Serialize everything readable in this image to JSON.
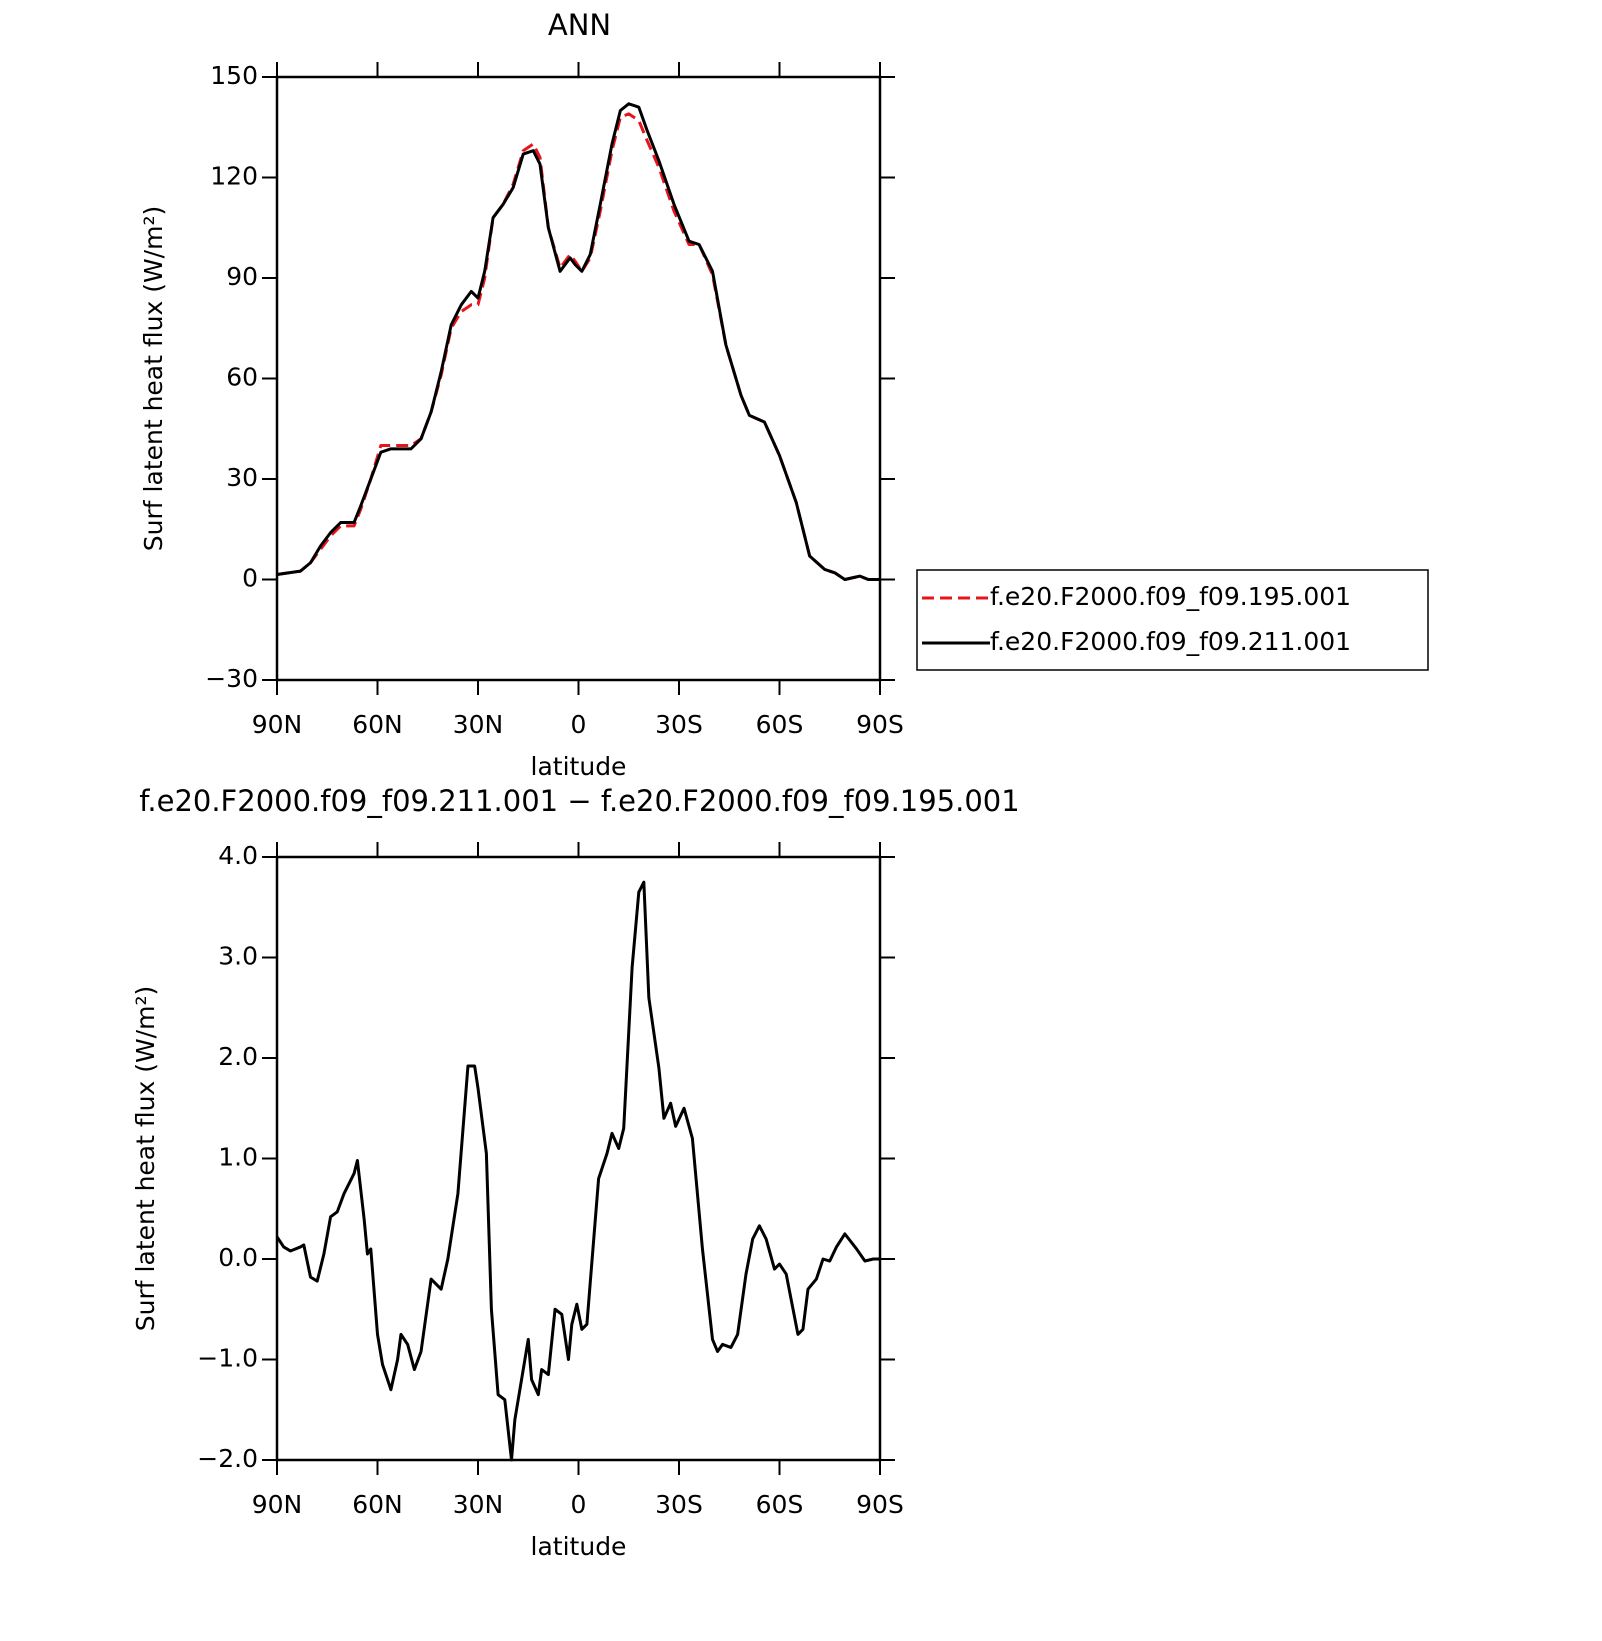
{
  "chart_data": [
    {
      "type": "line",
      "title": "ANN",
      "xlabel": "latitude",
      "ylabel": "Surf latent heat flux (W/m²)",
      "x": [
        90,
        83,
        80,
        77,
        74,
        71,
        67,
        65,
        62,
        59,
        56,
        50,
        47,
        44,
        41,
        38,
        35,
        32,
        30,
        28,
        25.5,
        22.5,
        19.5,
        16.5,
        13.5,
        11.5,
        9,
        5.5,
        2.5,
        1,
        -1,
        -3.5,
        -6.5,
        -10,
        -12.5,
        -15,
        -18,
        -20.5,
        -24,
        -28.5,
        -33,
        -36,
        -40,
        -44,
        -48.5,
        -51,
        -55.5,
        -60,
        -65,
        -69,
        -73.5,
        -76.5,
        -79.5,
        -84,
        -86.5,
        -90
      ],
      "series": [
        {
          "name": "f.e20.F2000.f09_f09.195.001",
          "color": "#e8141b",
          "line_style": "dashed",
          "values": [
            1.5,
            2.5,
            5,
            9,
            13,
            16,
            16,
            21,
            30,
            40,
            40,
            40,
            42,
            50,
            61,
            75,
            80,
            82,
            82,
            90,
            108,
            112,
            118,
            128,
            130,
            126,
            105,
            93,
            97,
            95,
            92,
            96,
            110,
            128,
            138,
            139,
            137,
            131,
            123,
            110,
            100,
            100,
            91,
            70,
            55,
            49,
            47,
            37,
            23,
            7,
            3,
            2,
            0,
            1,
            0,
            0
          ]
        },
        {
          "name": "f.e20.F2000.f09_f09.211.001",
          "color": "#000000",
          "line_style": "solid",
          "values": [
            1.5,
            2.5,
            5,
            10,
            14,
            17,
            17,
            22,
            30,
            38,
            39,
            39,
            42,
            50,
            62,
            76,
            82,
            86,
            84,
            92,
            108,
            112,
            117,
            127,
            128,
            124,
            105,
            92,
            96,
            94,
            92,
            97,
            112,
            130,
            140,
            142,
            141,
            134,
            125,
            112,
            101,
            100,
            92,
            70,
            55,
            49,
            47,
            37,
            23,
            7,
            3,
            2,
            0,
            1,
            0,
            0
          ]
        }
      ],
      "xlim": [
        90,
        -90
      ],
      "xticks": [
        {
          "value": 90,
          "label": "90N"
        },
        {
          "value": 60,
          "label": "60N"
        },
        {
          "value": 30,
          "label": "30N"
        },
        0,
        {
          "value": -30,
          "label": "30S"
        },
        {
          "value": -60,
          "label": "60S"
        },
        {
          "value": -90,
          "label": "90S"
        }
      ],
      "ylim": [
        -30,
        150
      ],
      "yticks": [
        {
          "value": -30,
          "label": "−30"
        },
        0,
        30,
        60,
        90,
        120,
        150
      ],
      "legend": "right"
    },
    {
      "type": "line",
      "title": "f.e20.F2000.f09_f09.211.001 − f.e20.F2000.f09_f09.195.001",
      "xlabel": "latitude",
      "ylabel": "Surf latent heat flux (W/m²)",
      "x": [
        90,
        88,
        86,
        83,
        82,
        80,
        78,
        76,
        74,
        72,
        70,
        67,
        66,
        64,
        63,
        62,
        60,
        58.5,
        56,
        54,
        53,
        51,
        49,
        47,
        44,
        41,
        39,
        36,
        33,
        31,
        30,
        27.5,
        26,
        24,
        22,
        20,
        19,
        17,
        15,
        14,
        12,
        11,
        9,
        7,
        5,
        3,
        2,
        0.5,
        -1,
        -2.5,
        -6,
        -8.5,
        -10,
        -12,
        -13.5,
        -16,
        -18,
        -19.5,
        -21,
        -24,
        -25.5,
        -27.5,
        -29,
        -31.5,
        -34,
        -37,
        -40,
        -41.5,
        -43,
        -45.5,
        -47.5,
        -50,
        -52,
        -54,
        -56,
        -58.5,
        -60,
        -62,
        -65.5,
        -67,
        -68.5,
        -71,
        -73,
        -75,
        -77,
        -79.5,
        -83,
        -85.5,
        -88,
        -90
      ],
      "values": [
        0.22,
        0.12,
        0.08,
        0.12,
        0.14,
        -0.18,
        -0.22,
        0.05,
        0.42,
        0.47,
        0.65,
        0.85,
        0.98,
        0.4,
        0.05,
        0.1,
        -0.75,
        -1.05,
        -1.3,
        -1.0,
        -0.75,
        -0.85,
        -1.1,
        -0.92,
        -0.2,
        -0.3,
        0.0,
        0.65,
        1.92,
        1.92,
        1.7,
        1.05,
        -0.5,
        -1.35,
        -1.4,
        -2.0,
        -1.6,
        -1.2,
        -0.8,
        -1.2,
        -1.35,
        -1.1,
        -1.15,
        -0.5,
        -0.55,
        -1.0,
        -0.65,
        -0.45,
        -0.7,
        -0.65,
        0.8,
        1.05,
        1.25,
        1.1,
        1.3,
        2.9,
        3.65,
        3.75,
        2.6,
        1.9,
        1.4,
        1.55,
        1.32,
        1.5,
        1.2,
        0.1,
        -0.8,
        -0.92,
        -0.85,
        -0.88,
        -0.75,
        -0.15,
        0.2,
        0.33,
        0.2,
        -0.1,
        -0.05,
        -0.15,
        -0.75,
        -0.7,
        -0.3,
        -0.2,
        0.0,
        -0.02,
        0.12,
        0.25,
        0.1,
        -0.02,
        0.0,
        0.0
      ],
      "color": "#000000",
      "xlim": [
        90,
        -90
      ],
      "xticks": [
        {
          "value": 90,
          "label": "90N"
        },
        {
          "value": 60,
          "label": "60N"
        },
        {
          "value": 30,
          "label": "30N"
        },
        0,
        {
          "value": -30,
          "label": "30S"
        },
        {
          "value": -60,
          "label": "60S"
        },
        {
          "value": -90,
          "label": "90S"
        }
      ],
      "ylim": [
        -2,
        4
      ],
      "yticks": [
        {
          "value": -2,
          "label": "−2.0"
        },
        {
          "value": -1,
          "label": "−1.0"
        },
        {
          "value": 0,
          "label": "0.0"
        },
        {
          "value": 1,
          "label": "1.0"
        },
        {
          "value": 2,
          "label": "2.0"
        },
        {
          "value": 3,
          "label": "3.0"
        },
        {
          "value": 4,
          "label": "4.0"
        }
      ]
    }
  ]
}
